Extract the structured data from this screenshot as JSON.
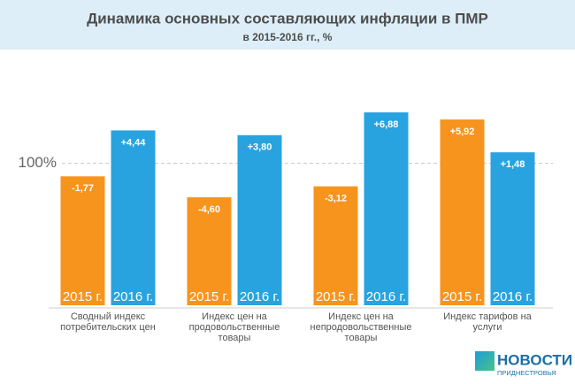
{
  "chart_data": {
    "type": "bar",
    "title": "Динамика основных составляющих инфляции в ПМР",
    "subtitle": "в 2015-2016 гг., %",
    "categories": [
      "Сводный индекс потребительских цен",
      "Индекс цен на продовольственные товары",
      "Индекс цен на непродовольственные товары",
      "Индекс тарифов на услуги"
    ],
    "series": [
      {
        "name": "2015 г.",
        "color": "#f7941d",
        "values": [
          -1.77,
          -4.6,
          -3.12,
          5.92
        ],
        "value_labels": [
          "-1,77",
          "-4,60",
          "-3,12",
          "+5,92"
        ]
      },
      {
        "name": "2016 г.",
        "color": "#29a3e0",
        "values": [
          4.44,
          3.8,
          6.88,
          1.48
        ],
        "value_labels": [
          "+4,44",
          "+3,80",
          "+6,88",
          "+1,48"
        ]
      }
    ],
    "ylim": [
      -19.2,
      7
    ],
    "yticks": [
      {
        "value": 0,
        "label": "100%"
      }
    ],
    "grid": true
  },
  "logo": {
    "line1": "НОВОСТИ",
    "line2": "ПРИДНЕСТРОВЬЯ"
  }
}
